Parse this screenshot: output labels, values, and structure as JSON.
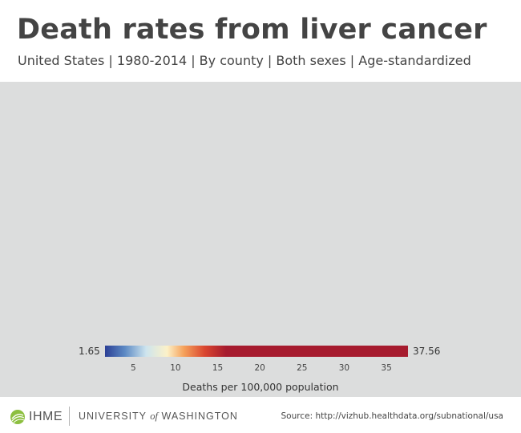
{
  "header": {
    "title": "Death rates from liver cancer",
    "subtitle": "United States | 1980-2014 | By county | Both sexes | Age-standardized"
  },
  "map": {
    "background_color": "#dcdddd"
  },
  "legend": {
    "min_label": "1.65",
    "max_label": "37.56",
    "title": "Deaths per 100,000 population",
    "min": 1.65,
    "max": 37.56,
    "ticks": [
      "5",
      "10",
      "15",
      "20",
      "25",
      "30",
      "35"
    ],
    "tick_values": [
      5,
      10,
      15,
      20,
      25,
      30,
      35
    ],
    "color_stops": [
      {
        "value": 1.65,
        "color": "#2b3f95"
      },
      {
        "value": 4.0,
        "color": "#5d8ac4"
      },
      {
        "value": 6.5,
        "color": "#cde4ee"
      },
      {
        "value": 9.0,
        "color": "#fcf1c8"
      },
      {
        "value": 11.0,
        "color": "#f5a15a"
      },
      {
        "value": 13.5,
        "color": "#d9452f"
      },
      {
        "value": 16.0,
        "color": "#a61b2e"
      },
      {
        "value": 37.56,
        "color": "#a61b2e"
      }
    ]
  },
  "footer": {
    "org_short": "IHME",
    "university_part1": "UNIVERSITY",
    "university_of": "of",
    "university_part2": "WASHINGTON",
    "source": "Source: http://vizhub.healthdata.org/subnational/usa"
  }
}
